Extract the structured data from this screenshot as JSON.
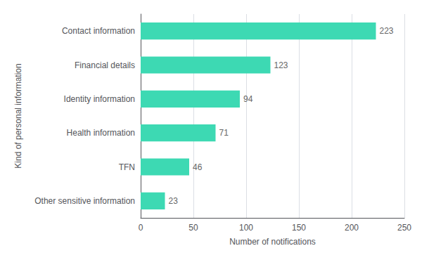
{
  "chart_data": {
    "type": "bar",
    "orientation": "horizontal",
    "categories": [
      "Other sensitive information",
      "TFN",
      "Health information",
      "Identity information",
      "Financial details",
      "Contact information"
    ],
    "values": [
      23,
      46,
      71,
      94,
      123,
      223
    ],
    "color": "#3DD9B3",
    "xlabel": "Number of notifications",
    "ylabel": "Kind of personal information",
    "xlim": [
      0,
      250
    ],
    "xticks": [
      0,
      50,
      100,
      150,
      200,
      250
    ],
    "grid": true,
    "data_labels": true
  }
}
